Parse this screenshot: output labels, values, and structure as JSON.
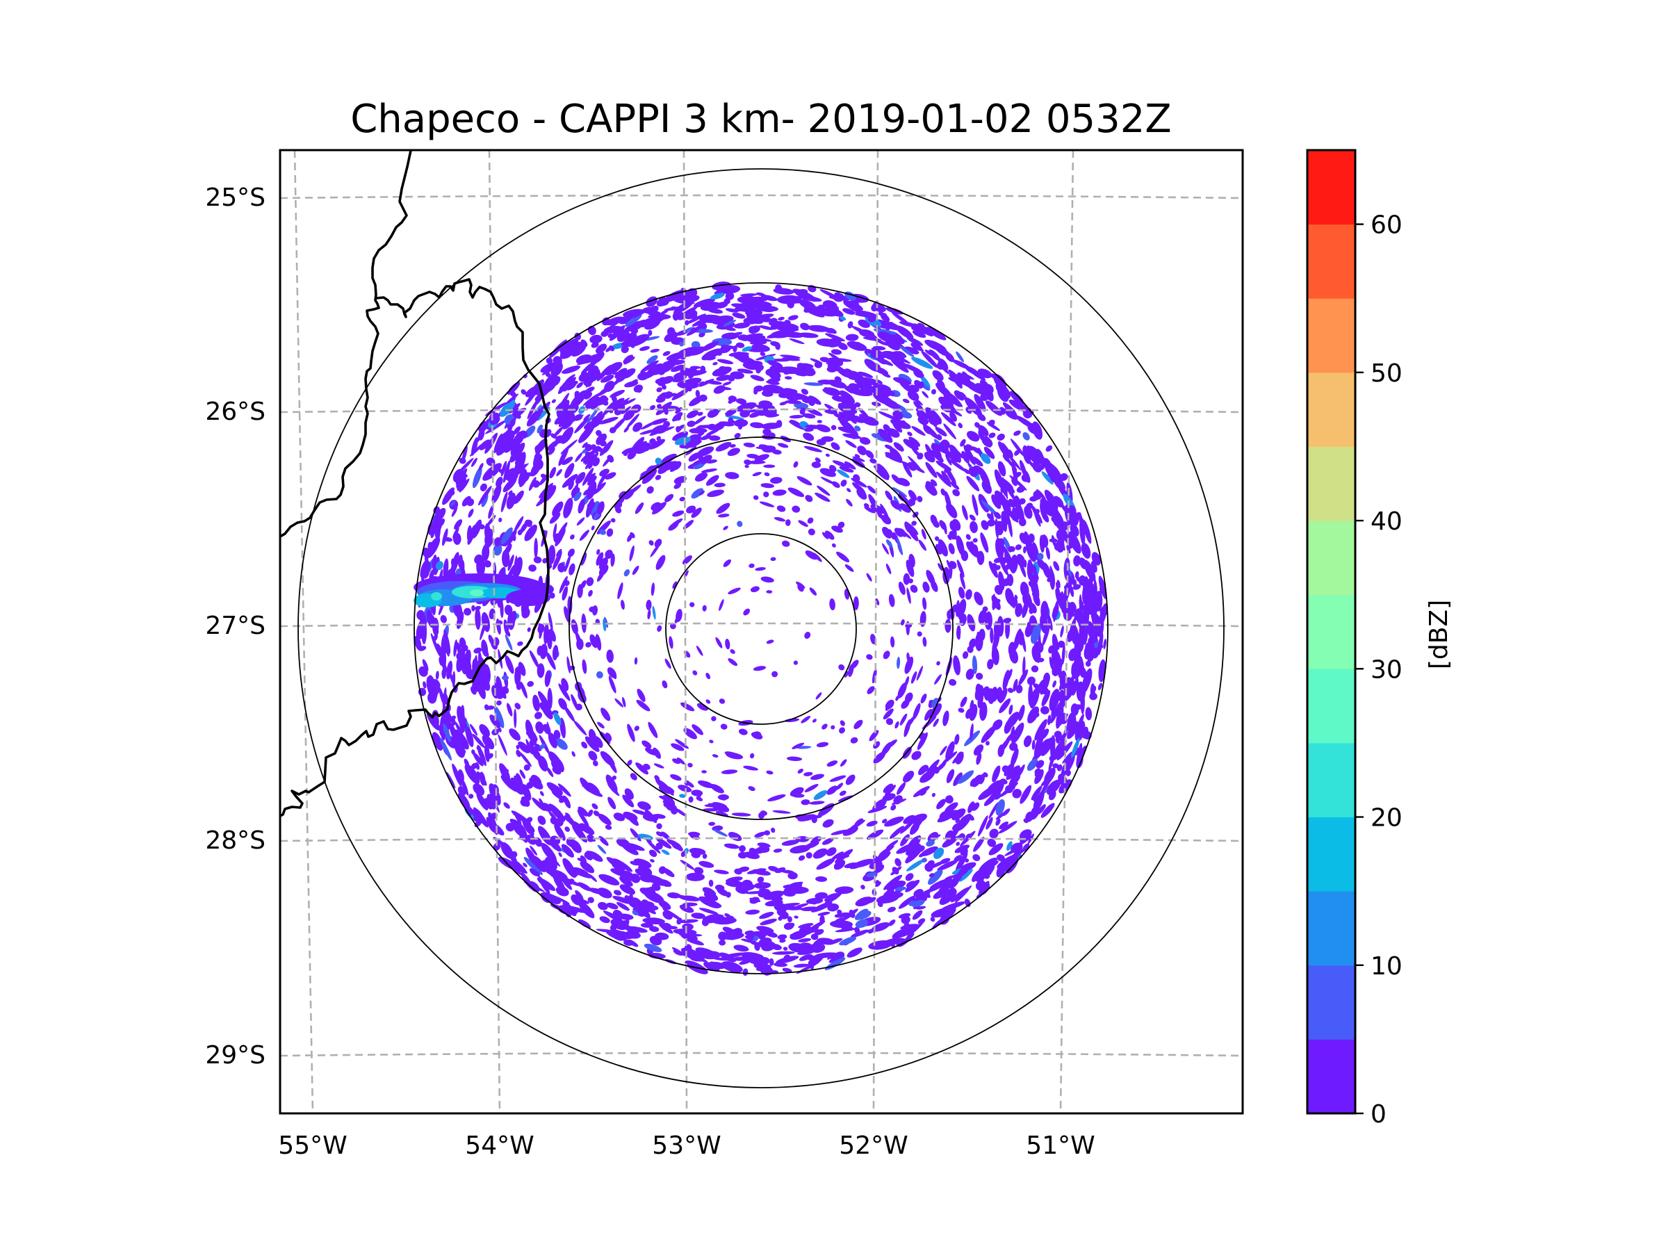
{
  "figure": {
    "title": "Chapeco - CAPPI 3 km- 2019-01-02 0532Z",
    "radar_site": "Chapeco",
    "product": "CAPPI 3 km",
    "datetime": "2019-01-02 0532Z"
  },
  "chart_data": {
    "type": "heatmap",
    "title": "Chapeco - CAPPI 3 km- 2019-01-02 0532Z",
    "xlabel": "",
    "ylabel": "",
    "x_ticks": [
      {
        "value": -55,
        "label": "55°W"
      },
      {
        "value": -54,
        "label": "54°W"
      },
      {
        "value": -53,
        "label": "53°W"
      },
      {
        "value": -52,
        "label": "52°W"
      },
      {
        "value": -51,
        "label": "51°W"
      }
    ],
    "y_ticks": [
      {
        "value": -25,
        "label": "25°S"
      },
      {
        "value": -26,
        "label": "26°S"
      },
      {
        "value": -27,
        "label": "27°S"
      },
      {
        "value": -28,
        "label": "28°S"
      },
      {
        "value": -29,
        "label": "29°S"
      }
    ],
    "grid": true,
    "grid_style": "dashed",
    "range_rings": 4,
    "field": "reflectivity",
    "echo_summary": {
      "dominant_dbz": [
        0,
        5
      ],
      "max_dbz_approx": 30,
      "strong_echo_band": {
        "location": "west of radar, near 27°S / 54.3°W",
        "dbz_range": [
          5,
          30
        ]
      },
      "densest_sector": "north and north-east"
    },
    "colorbar": {
      "label": "[dBZ]",
      "min": 0,
      "max": 65,
      "step": 5,
      "ticks": [
        0,
        10,
        20,
        30,
        40,
        50,
        60
      ],
      "tick_labels": [
        "0",
        "10",
        "20",
        "30",
        "40",
        "50",
        "60"
      ],
      "colors": [
        "#6f1bff",
        "#485cfa",
        "#218ff0",
        "#0bbde6",
        "#33e2d8",
        "#5ff8c7",
        "#84feb2",
        "#a3f79c",
        "#d0e087",
        "#f5bf6d",
        "#ff934f",
        "#ff5b2e",
        "#ff1b13"
      ]
    },
    "legend": "colorbar-right"
  },
  "map": {
    "boundaries": "state/country borders (black)",
    "gridline_color": "#b0b0b0",
    "ring_color": "#000000"
  }
}
